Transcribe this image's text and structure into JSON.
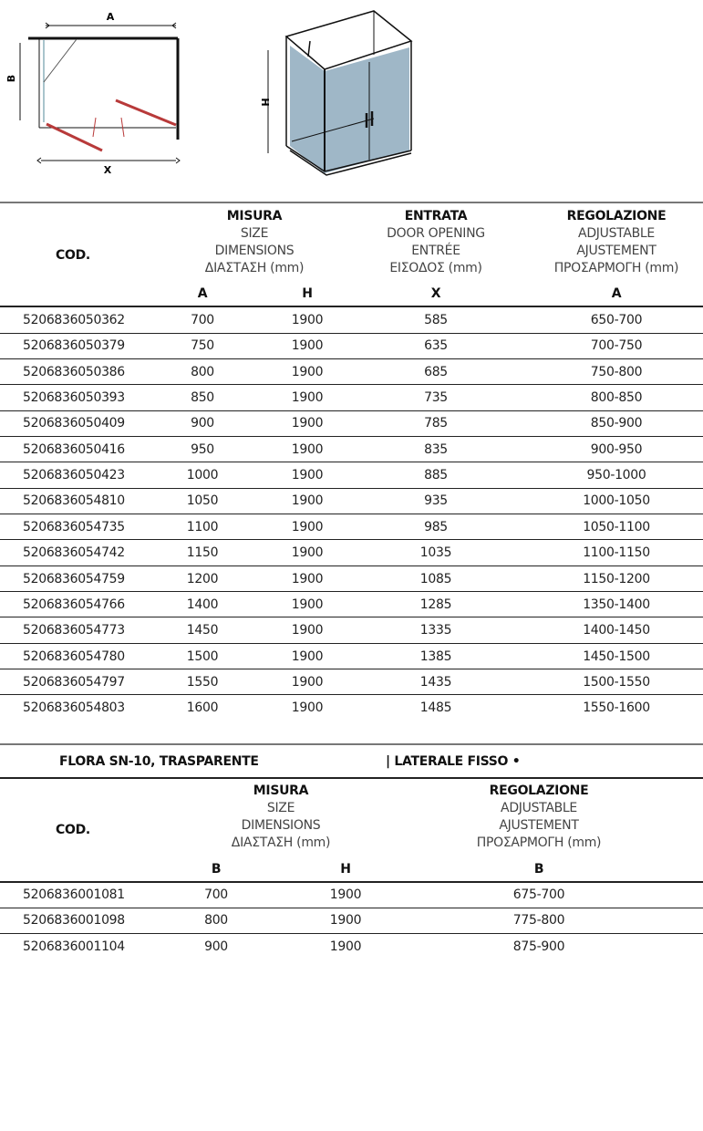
{
  "diagram": {
    "labels": {
      "a": "A",
      "b": "B",
      "x": "X",
      "h": "H"
    },
    "colors": {
      "glass": "#9fb7c7",
      "door_swing": "#b83a3a"
    }
  },
  "table1": {
    "cod_label": "COD.",
    "size_header": [
      "MISURA",
      "SIZE",
      "DIMENSIONS",
      "ΔΙΑΣΤΑΣΗ (mm)"
    ],
    "entry_header": [
      "ENTRATA",
      "DOOR OPENING",
      "ENTRÉE",
      "ΕΙΣΟΔΟΣ (mm)"
    ],
    "adj_header": [
      "REGOLAZIONE",
      "ADJUSTABLE",
      "AJUSTEMENT",
      "ΠΡΟΣΑΡΜΟΓΗ (mm)"
    ],
    "sub": [
      "A",
      "H",
      "X",
      "A"
    ],
    "rows": [
      [
        "5206836050362",
        "700",
        "1900",
        "585",
        "650-700"
      ],
      [
        "5206836050379",
        "750",
        "1900",
        "635",
        "700-750"
      ],
      [
        "5206836050386",
        "800",
        "1900",
        "685",
        "750-800"
      ],
      [
        "5206836050393",
        "850",
        "1900",
        "735",
        "800-850"
      ],
      [
        "5206836050409",
        "900",
        "1900",
        "785",
        "850-900"
      ],
      [
        "5206836050416",
        "950",
        "1900",
        "835",
        "900-950"
      ],
      [
        "5206836050423",
        "1000",
        "1900",
        "885",
        "950-1000"
      ],
      [
        "5206836054810",
        "1050",
        "1900",
        "935",
        "1000-1050"
      ],
      [
        "5206836054735",
        "1100",
        "1900",
        "985",
        "1050-1100"
      ],
      [
        "5206836054742",
        "1150",
        "1900",
        "1035",
        "1100-1150"
      ],
      [
        "5206836054759",
        "1200",
        "1900",
        "1085",
        "1150-1200"
      ],
      [
        "5206836054766",
        "1400",
        "1900",
        "1285",
        "1350-1400"
      ],
      [
        "5206836054773",
        "1450",
        "1900",
        "1335",
        "1400-1450"
      ],
      [
        "5206836054780",
        "1500",
        "1900",
        "1385",
        "1450-1500"
      ],
      [
        "5206836054797",
        "1550",
        "1900",
        "1435",
        "1500-1550"
      ],
      [
        "5206836054803",
        "1600",
        "1900",
        "1485",
        "1550-1600"
      ]
    ]
  },
  "table2": {
    "title": "FLORA SN-10, TRASPARENTE",
    "subtitle": "| LATERALE FISSO •",
    "cod_label": "COD.",
    "size_header": [
      "MISURA",
      "SIZE",
      "DIMENSIONS",
      "ΔΙΑΣΤΑΣΗ (mm)"
    ],
    "adj_header": [
      "REGOLAZIONE",
      "ADJUSTABLE",
      "AJUSTEMENT",
      "ΠΡΟΣΑΡΜΟΓΗ (mm)"
    ],
    "sub": [
      "B",
      "H",
      "B"
    ],
    "rows": [
      [
        "5206836001081",
        "700",
        "1900",
        "675-700"
      ],
      [
        "5206836001098",
        "800",
        "1900",
        "775-800"
      ],
      [
        "5206836001104",
        "900",
        "1900",
        "875-900"
      ]
    ]
  }
}
